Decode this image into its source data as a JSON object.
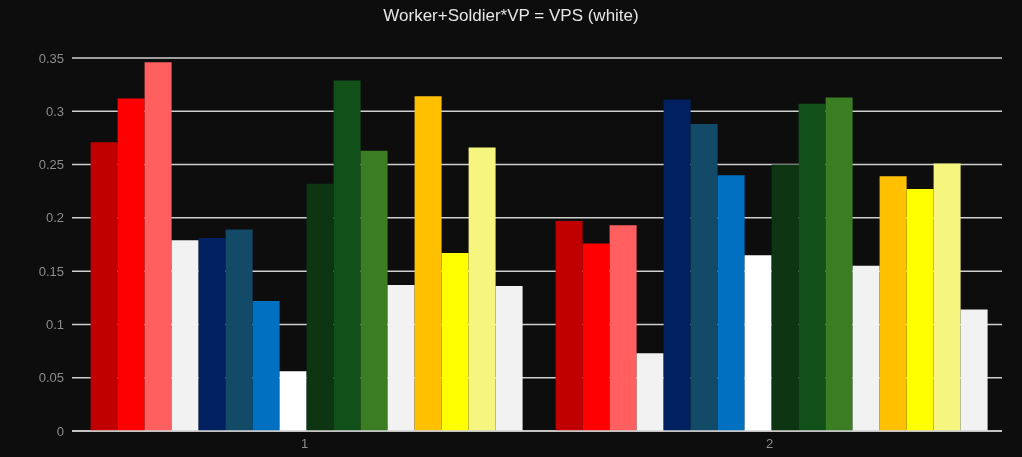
{
  "chart_data": {
    "type": "bar",
    "title": "Worker+Soldier*VP = VPS (white)",
    "categories": [
      "1",
      "2"
    ],
    "ylim": [
      0,
      0.35
    ],
    "yticks": [
      0,
      0.05,
      0.1,
      0.15,
      0.2,
      0.25,
      0.3,
      0.35
    ],
    "grid": "y",
    "series": [
      {
        "color": "#c00000",
        "values": [
          0.271,
          0.197
        ]
      },
      {
        "color": "#ff0000",
        "values": [
          0.312,
          0.176
        ]
      },
      {
        "color": "#ff5f5f",
        "values": [
          0.346,
          0.193
        ]
      },
      {
        "color": "#f2f2f2",
        "values": [
          0.179,
          0.073
        ]
      },
      {
        "color": "#002060",
        "values": [
          0.181,
          0.311
        ]
      },
      {
        "color": "#124a68",
        "values": [
          0.189,
          0.288
        ]
      },
      {
        "color": "#0070c0",
        "values": [
          0.122,
          0.24
        ]
      },
      {
        "color": "#ffffff",
        "values": [
          0.056,
          0.165
        ]
      },
      {
        "color": "#0d3512",
        "values": [
          0.232,
          0.25
        ]
      },
      {
        "color": "#12501a",
        "values": [
          0.329,
          0.307
        ]
      },
      {
        "color": "#3a7d22",
        "values": [
          0.263,
          0.313
        ]
      },
      {
        "color": "#f2f2f2",
        "values": [
          0.137,
          0.155
        ]
      },
      {
        "color": "#ffc000",
        "values": [
          0.314,
          0.239
        ]
      },
      {
        "color": "#ffff00",
        "values": [
          0.167,
          0.227
        ]
      },
      {
        "color": "#f5f57f",
        "values": [
          0.266,
          0.251
        ]
      },
      {
        "color": "#f2f2f2",
        "values": [
          0.136,
          0.114
        ]
      }
    ]
  }
}
